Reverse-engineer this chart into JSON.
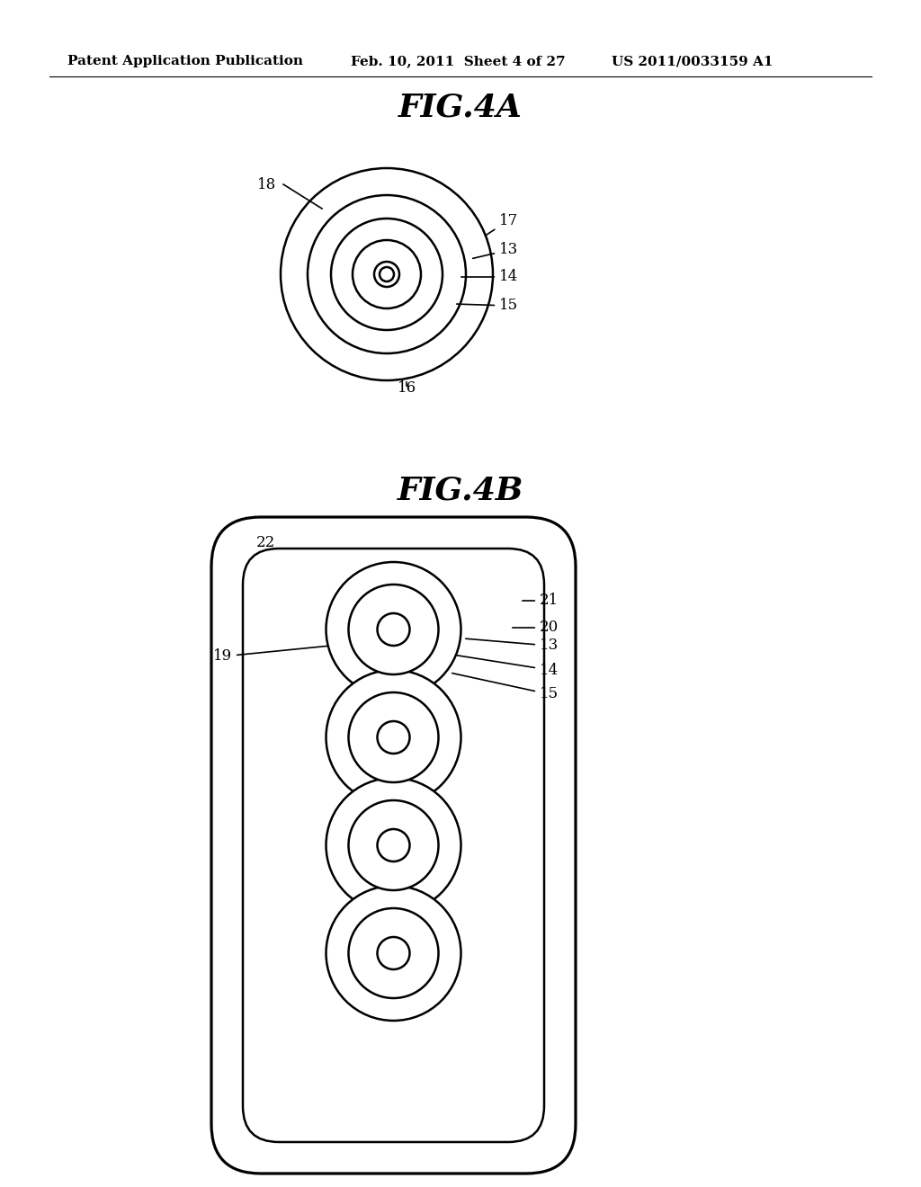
{
  "bg_color": "#ffffff",
  "header_text": "Patent Application Publication",
  "header_date": "Feb. 10, 2011  Sheet 4 of 27",
  "header_patent": "US 2011/0033159 A1",
  "fig4a_title": "FIG.4A",
  "fig4b_title": "FIG.4B",
  "line_width": 1.8,
  "annotation_fontsize": 12,
  "title_fontsize": 26,
  "header_fontsize": 11
}
